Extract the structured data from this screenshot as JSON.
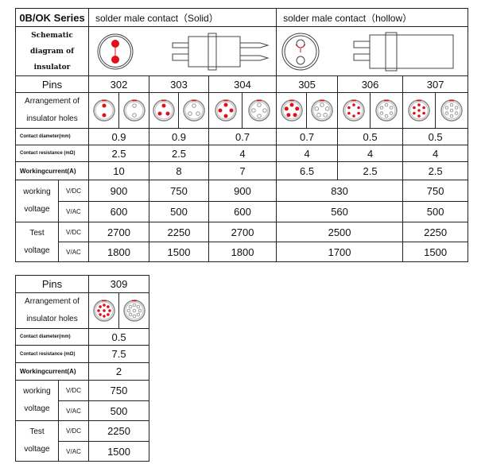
{
  "header": {
    "series": "0B/OK Series",
    "solid": "solder male contact（Solid）",
    "hollow": "solder male contact（hollow）"
  },
  "labels": {
    "schematic": "Schematic diagram of insulator",
    "pins": "Pins",
    "arrangement": "Arrangement of insulator holes",
    "diameter": "Contact    diameter(mm)",
    "resistance": "Contact resistance (mΩ)",
    "current": "Workingcurrent(A)",
    "working": "working voltage",
    "test": "Test voltage",
    "vdc": "V/DC",
    "vac": "V/AC"
  },
  "colors": {
    "red": "#e0101a",
    "line": "#222222"
  },
  "table1": {
    "pins": [
      "302",
      "303",
      "304",
      "305",
      "306",
      "307"
    ],
    "diameter": [
      "0.9",
      "0.9",
      "0.7",
      "0.7",
      "0.5",
      "0.5"
    ],
    "resistance": [
      "2.5",
      "2.5",
      "4",
      "4",
      "4",
      "4"
    ],
    "current": [
      "10",
      "8",
      "7",
      "6.5",
      "2.5",
      "2.5"
    ],
    "wv_dc": [
      "900",
      "750",
      "900",
      "830",
      "750"
    ],
    "wv_ac": [
      "600",
      "500",
      "600",
      "560",
      "500"
    ],
    "tv_dc": [
      "2700",
      "2250",
      "2700",
      "2500",
      "2250"
    ],
    "tv_ac": [
      "1800",
      "1500",
      "1800",
      "1700",
      "1500"
    ]
  },
  "table2": {
    "pin": "309",
    "diameter": "0.5",
    "resistance": "7.5",
    "current": "2",
    "wv_dc": "750",
    "wv_ac": "500",
    "tv_dc": "2250",
    "tv_ac": "1500"
  }
}
